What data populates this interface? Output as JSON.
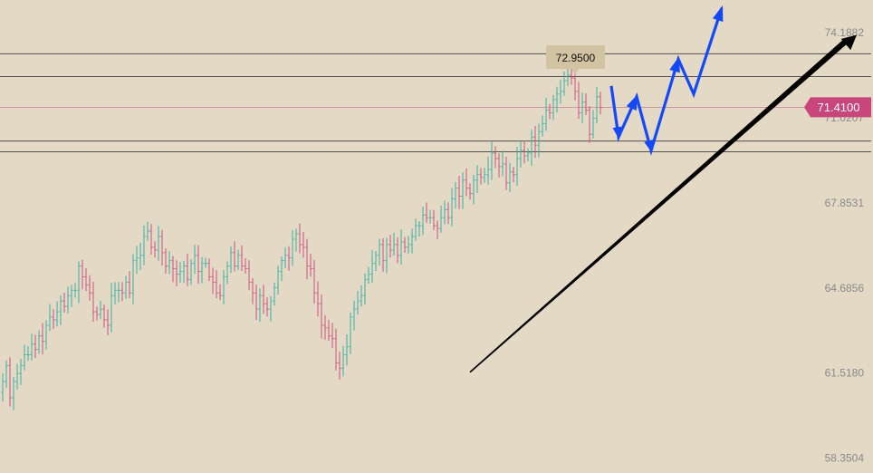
{
  "chart_data": {
    "type": "candlestick",
    "y_axis": {
      "ticks": [
        "74.1882",
        "71.0207",
        "67.8531",
        "64.6856",
        "61.5180",
        "58.3504"
      ],
      "tick_values": [
        74.1882,
        71.0207,
        67.8531,
        64.6856,
        61.518,
        58.3504
      ],
      "position": "right"
    },
    "ylim": [
      57.8,
      75.4
    ],
    "grid": false,
    "current_price": {
      "label": "71.4100",
      "value": 71.41
    },
    "peak_annotation": {
      "label": "72.9500",
      "value": 72.95
    },
    "horizontal_levels": [
      73.4,
      72.55,
      70.15,
      69.75
    ],
    "trendline": {
      "from_bar": 129,
      "from_value": 61.55,
      "to_value": 73.9
    },
    "projection_path": [
      72.2,
      70.3,
      71.8,
      69.8,
      73.2,
      71.9,
      75.1
    ],
    "candle_close_series": [
      61.2,
      61.8,
      60.6,
      61.2,
      61.5,
      61.8,
      62.2,
      62.2,
      62.6,
      62.4,
      62.9,
      62.7,
      63.3,
      63.6,
      63.5,
      63.8,
      64.2,
      64.0,
      64.4,
      64.6,
      64.6,
      65.5,
      65.1,
      64.8,
      64.5,
      63.8,
      63.7,
      63.9,
      63.5,
      63.3,
      64.4,
      64.6,
      64.6,
      64.5,
      64.9,
      64.5,
      65.7,
      65.8,
      65.9,
      66.6,
      66.8,
      66.2,
      66.1,
      66.6,
      66.0,
      65.5,
      65.7,
      65.4,
      65.2,
      65.3,
      65.5,
      65.0,
      65.6,
      65.9,
      65.3,
      65.6,
      65.6,
      65.1,
      64.9,
      64.5,
      64.4,
      65.1,
      65.5,
      66.0,
      65.5,
      65.9,
      65.5,
      65.4,
      64.9,
      64.5,
      63.9,
      64.4,
      64.1,
      63.9,
      64.2,
      64.7,
      65.3,
      65.7,
      65.9,
      65.8,
      66.5,
      66.7,
      66.3,
      66.2,
      65.5,
      65.4,
      64.5,
      64.1,
      63.3,
      63.2,
      62.9,
      62.8,
      61.9,
      61.7,
      62.2,
      62.5,
      63.6,
      63.9,
      64.2,
      64.4,
      65.0,
      65.2,
      65.6,
      65.9,
      66.3,
      65.7,
      66.3,
      66.1,
      66.3,
      65.9,
      66.4,
      66.2,
      66.3,
      66.6,
      67.0,
      67.0,
      67.4,
      67.3,
      67.3,
      67.0,
      66.9,
      67.3,
      67.6,
      67.3,
      68.0,
      68.4,
      68.1,
      68.7,
      68.4,
      68.2,
      68.7,
      68.9,
      68.8,
      68.9,
      69.1,
      69.7,
      69.5,
      69.2,
      69.3,
      68.6,
      69.0,
      68.9,
      69.5,
      69.8,
      69.6,
      69.7,
      70.3,
      70.0,
      70.5,
      70.8,
      71.3,
      71.2,
      71.7,
      71.9,
      72.0,
      72.4,
      72.6,
      72.5,
      72.0,
      71.2,
      71.6,
      71.3,
      70.4,
      71.0,
      71.8,
      71.4
    ]
  }
}
